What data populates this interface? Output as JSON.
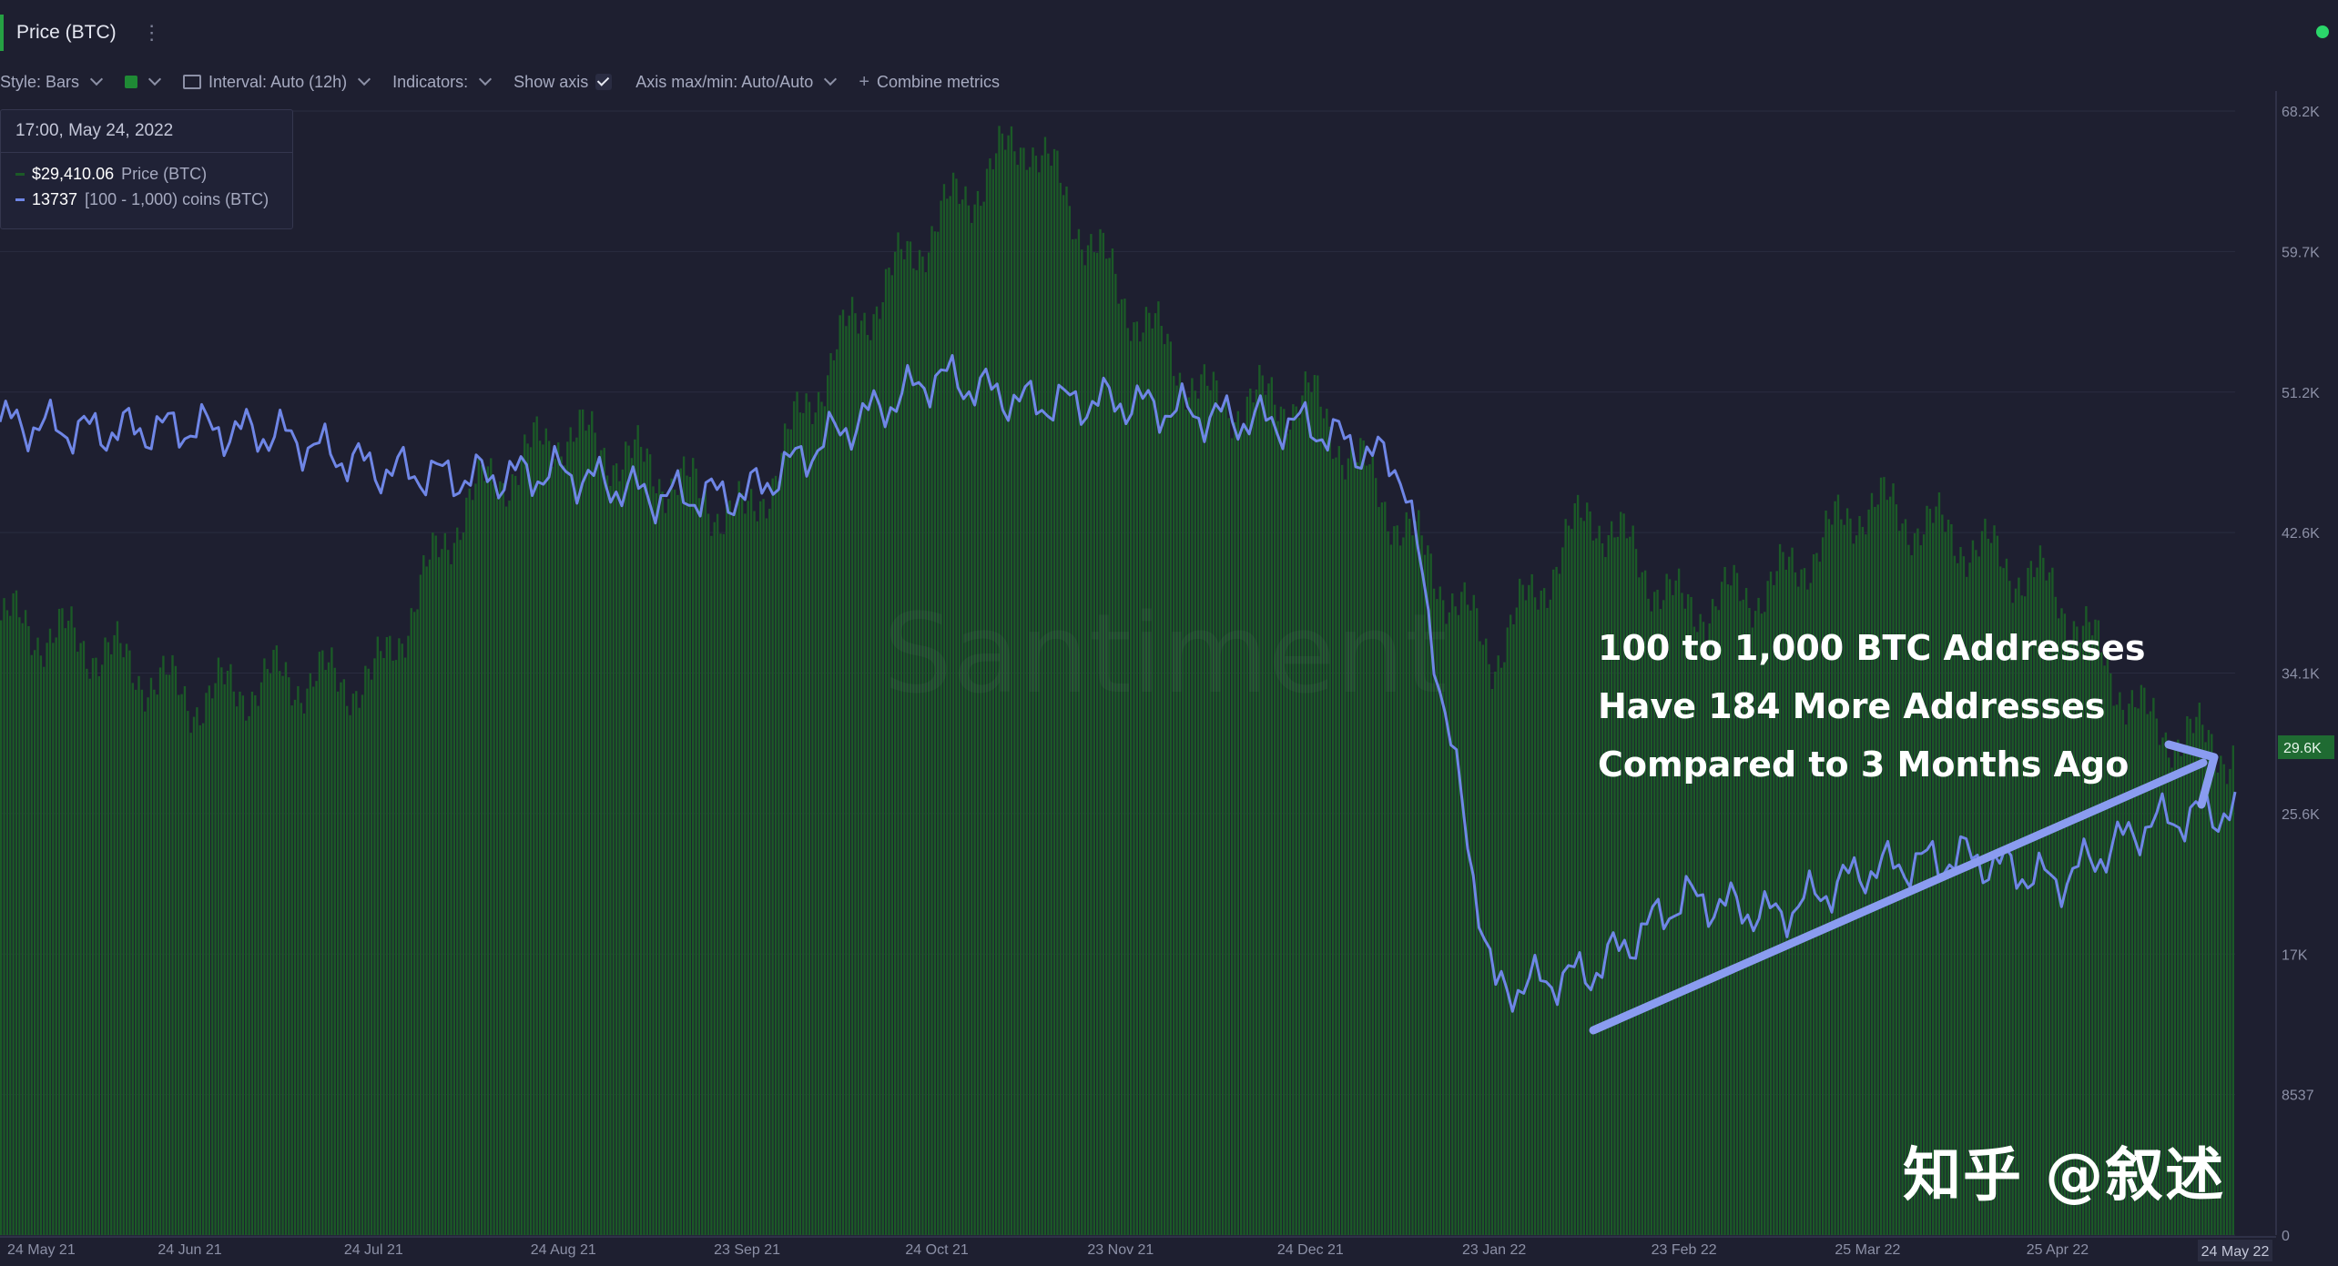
{
  "tab": {
    "label": "Price (BTC)",
    "menu_glyph": "⋮"
  },
  "toolbar": {
    "style_label": "Style: Bars",
    "interval_label": "Interval: Auto (12h)",
    "indicators_label": "Indicators:",
    "show_axis_label": "Show axis",
    "axis_minmax_label": "Axis max/min: Auto/Auto",
    "combine_label": "Combine metrics",
    "icons": [
      "chevron-down-icon",
      "color-swatch-icon",
      "interval-icon",
      "checkbox-icon",
      "plus-icon"
    ]
  },
  "tooltip": {
    "date": "17:00, May 24, 2022",
    "price_value": "$29,410.06",
    "price_label": "Price (BTC)",
    "holders_value": "13737",
    "holders_label": "[100 - 1,000) coins (BTC)"
  },
  "annotation": {
    "line1": "100 to 1,000 BTC Addresses",
    "line2": "Have 184 More Addresses",
    "line3": "Compared to 3 Months Ago"
  },
  "watermark": {
    "brand": "Santiment",
    "zh": "知乎 @叙述"
  },
  "colors": {
    "background": "#1e1f30",
    "price_bars": "#1b5a27",
    "holders_line": "#6f86e6",
    "arrow": "#8a9cf0",
    "axis_highlight": "#1f6b32"
  },
  "chart_data": {
    "type": "bar",
    "xlabel": "",
    "ylabel": "",
    "x_ticks": [
      "24 May 21",
      "24 Jun 21",
      "24 Jul 21",
      "24 Aug 21",
      "23 Sep 21",
      "24 Oct 21",
      "23 Nov 21",
      "24 Dec 21",
      "23 Jan 22",
      "23 Feb 22",
      "25 Mar 22",
      "25 Apr 22"
    ],
    "x_last_tick": "24 May 22",
    "y_ticks": [
      "68.2K",
      "59.7K",
      "51.2K",
      "42.6K",
      "34.1K",
      "25.6K",
      "17K",
      "8537",
      "0"
    ],
    "y_current_label": "29.6K",
    "ylim": [
      0,
      68200
    ],
    "grid": true,
    "series": [
      {
        "name": "Price (BTC)",
        "kind": "bar",
        "dates": [
          "2021-05-24",
          "2021-06-08",
          "2021-06-24",
          "2021-07-09",
          "2021-07-24",
          "2021-08-08",
          "2021-08-24",
          "2021-09-08",
          "2021-09-23",
          "2021-10-08",
          "2021-10-24",
          "2021-11-08",
          "2021-11-23",
          "2021-12-08",
          "2021-12-24",
          "2022-01-08",
          "2022-01-23",
          "2022-02-08",
          "2022-02-23",
          "2022-03-10",
          "2022-03-25",
          "2022-04-10",
          "2022-04-25",
          "2022-05-10",
          "2022-05-24"
        ],
        "values": [
          37300,
          35800,
          32500,
          33800,
          33600,
          44500,
          48800,
          46400,
          43300,
          54000,
          61500,
          66800,
          57200,
          50400,
          50800,
          43200,
          35200,
          44100,
          37900,
          39400,
          44500,
          42200,
          39100,
          31000,
          29410
        ]
      },
      {
        "name": "[100 - 1,000) coins (BTC)",
        "kind": "line",
        "dates": [
          "2021-05-24",
          "2021-06-08",
          "2021-06-24",
          "2021-07-09",
          "2021-07-24",
          "2021-08-08",
          "2021-08-24",
          "2021-09-08",
          "2021-09-23",
          "2021-10-08",
          "2021-10-24",
          "2021-11-08",
          "2021-11-23",
          "2021-12-08",
          "2021-12-24",
          "2022-01-08",
          "2022-01-23",
          "2022-02-08",
          "2022-02-23",
          "2022-03-10",
          "2022-03-25",
          "2022-04-10",
          "2022-04-25",
          "2022-05-10",
          "2022-05-24"
        ],
        "y_units_note": "",
        "values": [
          13945,
          13940,
          13942,
          13938,
          13920,
          13915,
          13918,
          13905,
          13906,
          13940,
          13970,
          13955,
          13956,
          13948,
          13943,
          13920,
          13640,
          13650,
          13690,
          13680,
          13705,
          13712,
          13698,
          13730,
          13737
        ]
      }
    ]
  }
}
